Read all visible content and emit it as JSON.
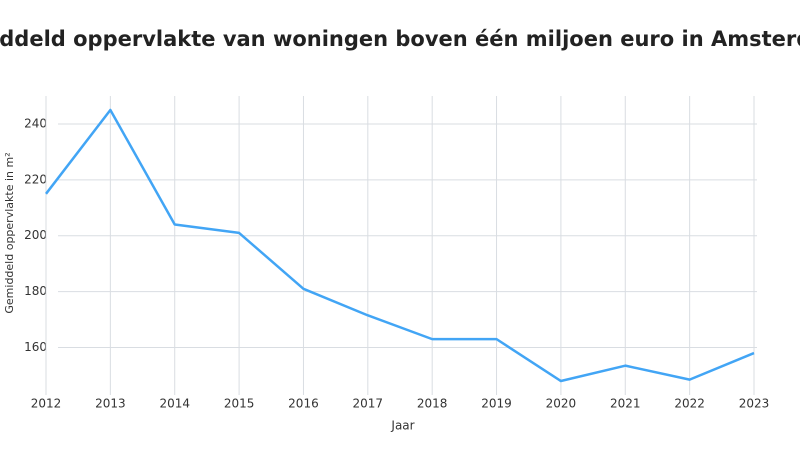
{
  "chart_data": {
    "type": "line",
    "title": "Gemiddeld oppervlakte van woningen boven één miljoen euro in Amsterdam",
    "x_label": "Jaar",
    "y_label": "Gemiddeld oppervlakte in m²",
    "x": [
      2012,
      2013,
      2014,
      2015,
      2016,
      2017,
      2018,
      2019,
      2020,
      2021,
      2022,
      2023
    ],
    "series": [
      {
        "name": "Gemiddeld oppervlakte",
        "color": "#42a5f5",
        "values": [
          215,
          245,
          204,
          201,
          181,
          171.5,
          163,
          163,
          148,
          153.5,
          148.5,
          158
        ]
      }
    ],
    "xlim": [
      2012,
      2023
    ],
    "xticks": [
      2012,
      2013,
      2014,
      2015,
      2016,
      2017,
      2018,
      2019,
      2020,
      2021,
      2022,
      2023
    ],
    "ylim": [
      143,
      250
    ],
    "yticks": [
      160,
      180,
      200,
      220,
      240
    ],
    "grid": true
  }
}
